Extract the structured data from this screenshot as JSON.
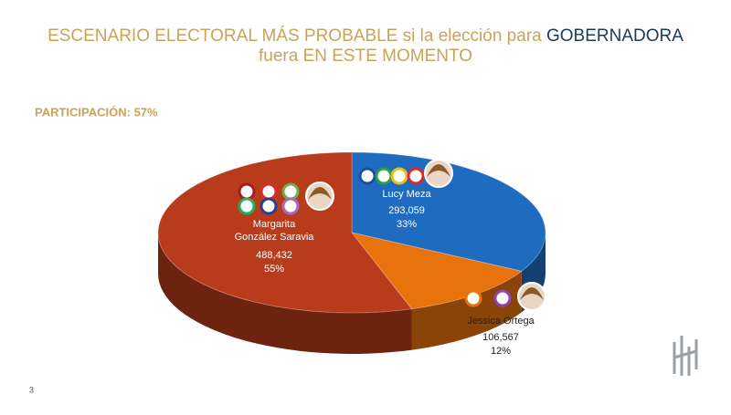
{
  "chart_data": {
    "type": "pie",
    "title_lead": "ESCENARIO ELECTORAL MÁS PROBABLE si la elección para",
    "title_highlight": "GOBERNADORA",
    "title_end": "fuera EN ESTE MOMENTO",
    "annotation": "PARTICIPACIÓN: 57%",
    "categories": [
      "Lucy Meza",
      "Jessica Ortega",
      "Margarita González Saravia"
    ],
    "values": [
      33,
      12,
      55
    ],
    "value_labels": [
      "33%",
      "12%",
      "55%"
    ],
    "votes": [
      293059,
      106567,
      488432
    ],
    "vote_labels": [
      "293,059",
      "106,567",
      "488,432"
    ],
    "colors": [
      "#1f6bbf",
      "#e8720c",
      "#b83b1b"
    ]
  },
  "page_number": "3"
}
